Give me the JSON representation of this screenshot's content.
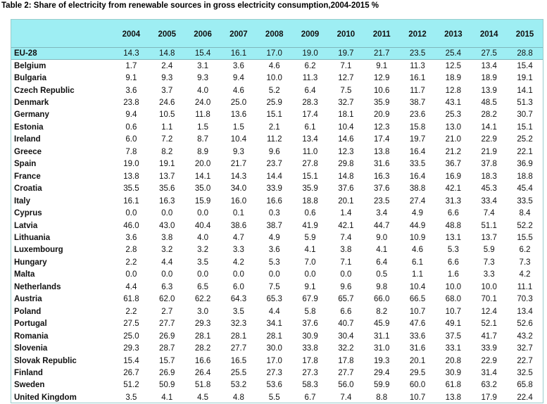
{
  "title": "Table 2: Share of electricity from renewable sources in gross electricity consumption,2004-2015 %",
  "chart_data": {
    "type": "table",
    "title": "Table 2: Share of electricity from renewable sources in gross electricity consumption,2004-2015 %",
    "columns": [
      "2004",
      "2005",
      "2006",
      "2007",
      "2008",
      "2009",
      "2010",
      "2011",
      "2012",
      "2013",
      "2014",
      "2015"
    ],
    "rows": [
      {
        "name": "EU-28",
        "values": [
          "14.3",
          "14.8",
          "15.4",
          "16.1",
          "17.0",
          "19.0",
          "19.7",
          "21.7",
          "23.5",
          "25.4",
          "27.5",
          "28.8"
        ]
      },
      {
        "name": "Belgium",
        "values": [
          "1.7",
          "2.4",
          "3.1",
          "3.6",
          "4.6",
          "6.2",
          "7.1",
          "9.1",
          "11.3",
          "12.5",
          "13.4",
          "15.4"
        ]
      },
      {
        "name": "Bulgaria",
        "values": [
          "9.1",
          "9.3",
          "9.3",
          "9.4",
          "10.0",
          "11.3",
          "12.7",
          "12.9",
          "16.1",
          "18.9",
          "18.9",
          "19.1"
        ]
      },
      {
        "name": "Czech Republic",
        "values": [
          "3.6",
          "3.7",
          "4.0",
          "4.6",
          "5.2",
          "6.4",
          "7.5",
          "10.6",
          "11.7",
          "12.8",
          "13.9",
          "14.1"
        ]
      },
      {
        "name": "Denmark",
        "values": [
          "23.8",
          "24.6",
          "24.0",
          "25.0",
          "25.9",
          "28.3",
          "32.7",
          "35.9",
          "38.7",
          "43.1",
          "48.5",
          "51.3"
        ]
      },
      {
        "name": "Germany",
        "values": [
          "9.4",
          "10.5",
          "11.8",
          "13.6",
          "15.1",
          "17.4",
          "18.1",
          "20.9",
          "23.6",
          "25.3",
          "28.2",
          "30.7"
        ]
      },
      {
        "name": "Estonia",
        "values": [
          "0.6",
          "1.1",
          "1.5",
          "1.5",
          "2.1",
          "6.1",
          "10.4",
          "12.3",
          "15.8",
          "13.0",
          "14.1",
          "15.1"
        ]
      },
      {
        "name": "Ireland",
        "values": [
          "6.0",
          "7.2",
          "8.7",
          "10.4",
          "11.2",
          "13.4",
          "14.6",
          "17.4",
          "19.7",
          "21.0",
          "22.9",
          "25.2"
        ]
      },
      {
        "name": "Greece",
        "values": [
          "7.8",
          "8.2",
          "8.9",
          "9.3",
          "9.6",
          "11.0",
          "12.3",
          "13.8",
          "16.4",
          "21.2",
          "21.9",
          "22.1"
        ]
      },
      {
        "name": "Spain",
        "values": [
          "19.0",
          "19.1",
          "20.0",
          "21.7",
          "23.7",
          "27.8",
          "29.8",
          "31.6",
          "33.5",
          "36.7",
          "37.8",
          "36.9"
        ]
      },
      {
        "name": "France",
        "values": [
          "13.8",
          "13.7",
          "14.1",
          "14.3",
          "14.4",
          "15.1",
          "14.8",
          "16.3",
          "16.4",
          "16.9",
          "18.3",
          "18.8"
        ]
      },
      {
        "name": "Croatia",
        "values": [
          "35.5",
          "35.6",
          "35.0",
          "34.0",
          "33.9",
          "35.9",
          "37.6",
          "37.6",
          "38.8",
          "42.1",
          "45.3",
          "45.4"
        ]
      },
      {
        "name": "Italy",
        "values": [
          "16.1",
          "16.3",
          "15.9",
          "16.0",
          "16.6",
          "18.8",
          "20.1",
          "23.5",
          "27.4",
          "31.3",
          "33.4",
          "33.5"
        ]
      },
      {
        "name": "Cyprus",
        "values": [
          "0.0",
          "0.0",
          "0.0",
          "0.1",
          "0.3",
          "0.6",
          "1.4",
          "3.4",
          "4.9",
          "6.6",
          "7.4",
          "8.4"
        ]
      },
      {
        "name": "Latvia",
        "values": [
          "46.0",
          "43.0",
          "40.4",
          "38.6",
          "38.7",
          "41.9",
          "42.1",
          "44.7",
          "44.9",
          "48.8",
          "51.1",
          "52.2"
        ]
      },
      {
        "name": "Lithuania",
        "values": [
          "3.6",
          "3.8",
          "4.0",
          "4.7",
          "4.9",
          "5.9",
          "7.4",
          "9.0",
          "10.9",
          "13.1",
          "13.7",
          "15.5"
        ]
      },
      {
        "name": "Luxembourg",
        "values": [
          "2.8",
          "3.2",
          "3.2",
          "3.3",
          "3.6",
          "4.1",
          "3.8",
          "4.1",
          "4.6",
          "5.3",
          "5.9",
          "6.2"
        ]
      },
      {
        "name": "Hungary",
        "values": [
          "2.2",
          "4.4",
          "3.5",
          "4.2",
          "5.3",
          "7.0",
          "7.1",
          "6.4",
          "6.1",
          "6.6",
          "7.3",
          "7.3"
        ]
      },
      {
        "name": "Malta",
        "values": [
          "0.0",
          "0.0",
          "0.0",
          "0.0",
          "0.0",
          "0.0",
          "0.0",
          "0.5",
          "1.1",
          "1.6",
          "3.3",
          "4.2"
        ]
      },
      {
        "name": "Netherlands",
        "values": [
          "4.4",
          "6.3",
          "6.5",
          "6.0",
          "7.5",
          "9.1",
          "9.6",
          "9.8",
          "10.4",
          "10.0",
          "10.0",
          "11.1"
        ]
      },
      {
        "name": "Austria",
        "values": [
          "61.8",
          "62.0",
          "62.2",
          "64.3",
          "65.3",
          "67.9",
          "65.7",
          "66.0",
          "66.5",
          "68.0",
          "70.1",
          "70.3"
        ]
      },
      {
        "name": "Poland",
        "values": [
          "2.2",
          "2.7",
          "3.0",
          "3.5",
          "4.4",
          "5.8",
          "6.6",
          "8.2",
          "10.7",
          "10.7",
          "12.4",
          "13.4"
        ]
      },
      {
        "name": "Portugal",
        "values": [
          "27.5",
          "27.7",
          "29.3",
          "32.3",
          "34.1",
          "37.6",
          "40.7",
          "45.9",
          "47.6",
          "49.1",
          "52.1",
          "52.6"
        ]
      },
      {
        "name": "Romania",
        "values": [
          "25.0",
          "26.9",
          "28.1",
          "28.1",
          "28.1",
          "30.9",
          "30.4",
          "31.1",
          "33.6",
          "37.5",
          "41.7",
          "43.2"
        ]
      },
      {
        "name": "Slovenia",
        "values": [
          "29.3",
          "28.7",
          "28.2",
          "27.7",
          "30.0",
          "33.8",
          "32.2",
          "31.0",
          "31.6",
          "33.1",
          "33.9",
          "32.7"
        ]
      },
      {
        "name": "Slovak Republic",
        "values": [
          "15.4",
          "15.7",
          "16.6",
          "16.5",
          "17.0",
          "17.8",
          "17.8",
          "19.3",
          "20.1",
          "20.8",
          "22.9",
          "22.7"
        ]
      },
      {
        "name": "Finland",
        "values": [
          "26.7",
          "26.9",
          "26.4",
          "25.5",
          "27.3",
          "27.3",
          "27.7",
          "29.4",
          "29.5",
          "30.9",
          "31.4",
          "32.5"
        ]
      },
      {
        "name": "Sweden",
        "values": [
          "51.2",
          "50.9",
          "51.8",
          "53.2",
          "53.6",
          "58.3",
          "56.0",
          "59.9",
          "60.0",
          "61.8",
          "63.2",
          "65.8"
        ]
      },
      {
        "name": "United Kingdom",
        "values": [
          "3.5",
          "4.1",
          "4.5",
          "4.8",
          "5.5",
          "6.7",
          "7.4",
          "8.8",
          "10.7",
          "13.8",
          "17.9",
          "22.4"
        ]
      }
    ],
    "highlight_row": "EU-28",
    "colors": {
      "header_bg": "#9eeef3",
      "highlight_bg": "#9eeef3",
      "border": "#9cc"
    }
  }
}
